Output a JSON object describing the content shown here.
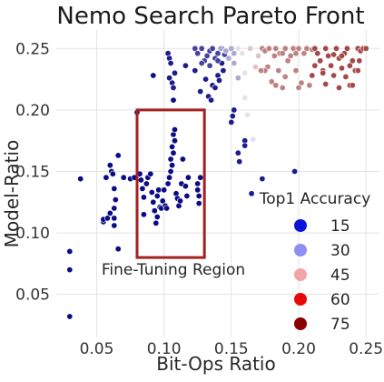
{
  "chart_data": {
    "type": "scatter",
    "title": "Nemo Search Pareto Front",
    "xlabel": "Bit-Ops Ratio",
    "ylabel": "Model-Ratio",
    "xlim": [
      0.02,
      0.26
    ],
    "ylim": [
      0.015,
      0.265
    ],
    "xticks": [
      0.05,
      0.1,
      0.15,
      0.2,
      0.25
    ],
    "xtick_labels": [
      "0.05",
      "0.10",
      "0.15",
      "0.20",
      "0.25"
    ],
    "yticks": [
      0.05,
      0.1,
      0.15,
      0.2,
      0.25
    ],
    "ytick_labels": [
      "0.05",
      "0.10",
      "0.15",
      "0.20",
      "0.25"
    ],
    "grid": true,
    "color_scale": {
      "min": 0,
      "max": 85,
      "low": "#000080",
      "mid": "#f5f0f0",
      "high": "#800000"
    },
    "legend": {
      "title": "Top1 Accuracy",
      "placement": "lower-right",
      "entries": [
        {
          "label": "15",
          "value": 15,
          "color": "#0b14d9"
        },
        {
          "label": "30",
          "value": 30,
          "color": "#8f8ff2"
        },
        {
          "label": "45",
          "value": 45,
          "color": "#f3a5a5"
        },
        {
          "label": "60",
          "value": 60,
          "color": "#e60a0a"
        },
        {
          "label": "75",
          "value": 75,
          "color": "#8b0000"
        }
      ]
    },
    "annotation": {
      "text": "Fine-Tuning Region",
      "rect_x": [
        0.08,
        0.13
      ],
      "rect_y": [
        0.08,
        0.2
      ],
      "edge_color": "#a52020"
    },
    "points": [
      [
        0.03,
        0.032,
        2
      ],
      [
        0.03,
        0.07,
        2
      ],
      [
        0.03,
        0.085,
        2
      ],
      [
        0.038,
        0.144,
        2
      ],
      [
        0.055,
        0.109,
        2
      ],
      [
        0.055,
        0.111,
        2
      ],
      [
        0.058,
        0.112,
        2
      ],
      [
        0.057,
        0.145,
        2
      ],
      [
        0.06,
        0.155,
        2
      ],
      [
        0.061,
        0.15,
        2
      ],
      [
        0.062,
        0.148,
        2
      ],
      [
        0.06,
        0.116,
        2
      ],
      [
        0.063,
        0.112,
        2
      ],
      [
        0.063,
        0.106,
        2
      ],
      [
        0.063,
        0.12,
        2
      ],
      [
        0.064,
        0.127,
        2
      ],
      [
        0.063,
        0.136,
        2
      ],
      [
        0.066,
        0.087,
        2
      ],
      [
        0.066,
        0.163,
        2
      ],
      [
        0.07,
        0.145,
        2
      ],
      [
        0.075,
        0.144,
        2
      ],
      [
        0.078,
        0.145,
        2
      ],
      [
        0.082,
        0.148,
        2
      ],
      [
        0.083,
        0.143,
        2
      ],
      [
        0.084,
        0.136,
        2
      ],
      [
        0.085,
        0.129,
        2
      ],
      [
        0.087,
        0.14,
        2
      ],
      [
        0.088,
        0.145,
        2
      ],
      [
        0.09,
        0.148,
        2
      ],
      [
        0.091,
        0.133,
        2
      ],
      [
        0.092,
        0.125,
        2
      ],
      [
        0.093,
        0.118,
        2
      ],
      [
        0.094,
        0.108,
        2
      ],
      [
        0.095,
        0.13,
        2
      ],
      [
        0.096,
        0.135,
        2
      ],
      [
        0.097,
        0.121,
        2
      ],
      [
        0.098,
        0.12,
        2
      ],
      [
        0.099,
        0.126,
        2
      ],
      [
        0.1,
        0.135,
        2
      ],
      [
        0.101,
        0.122,
        2
      ],
      [
        0.102,
        0.12,
        2
      ],
      [
        0.103,
        0.14,
        2
      ],
      [
        0.104,
        0.145,
        2
      ],
      [
        0.105,
        0.15,
        2
      ],
      [
        0.106,
        0.155,
        2
      ],
      [
        0.105,
        0.16,
        2
      ],
      [
        0.107,
        0.165,
        2
      ],
      [
        0.106,
        0.17,
        2
      ],
      [
        0.108,
        0.175,
        2
      ],
      [
        0.107,
        0.18,
        2
      ],
      [
        0.108,
        0.184,
        2
      ],
      [
        0.109,
        0.132,
        2
      ],
      [
        0.11,
        0.128,
        2
      ],
      [
        0.111,
        0.122,
        2
      ],
      [
        0.112,
        0.126,
        2
      ],
      [
        0.113,
        0.14,
        2
      ],
      [
        0.114,
        0.16,
        2
      ],
      [
        0.116,
        0.138,
        2
      ],
      [
        0.117,
        0.13,
        2
      ],
      [
        0.118,
        0.145,
        2
      ],
      [
        0.125,
        0.135,
        2
      ],
      [
        0.125,
        0.14,
        2
      ],
      [
        0.126,
        0.13,
        2
      ],
      [
        0.127,
        0.145,
        2
      ],
      [
        0.126,
        0.124,
        2
      ],
      [
        0.092,
        0.228,
        2
      ],
      [
        0.08,
        0.198,
        2
      ],
      [
        0.107,
        0.208,
        2
      ],
      [
        0.095,
        0.113,
        2
      ],
      [
        0.085,
        0.115,
        2
      ],
      [
        0.103,
        0.246,
        5
      ],
      [
        0.104,
        0.242,
        5
      ],
      [
        0.105,
        0.238,
        5
      ],
      [
        0.104,
        0.226,
        5
      ],
      [
        0.106,
        0.222,
        5
      ],
      [
        0.107,
        0.218,
        5
      ],
      [
        0.108,
        0.23,
        5
      ],
      [
        0.116,
        0.236,
        5
      ],
      [
        0.123,
        0.232,
        5
      ],
      [
        0.127,
        0.215,
        5
      ],
      [
        0.131,
        0.225,
        5
      ],
      [
        0.133,
        0.211,
        5
      ],
      [
        0.135,
        0.208,
        5
      ],
      [
        0.136,
        0.22,
        5
      ],
      [
        0.138,
        0.218,
        5
      ],
      [
        0.14,
        0.228,
        5
      ],
      [
        0.141,
        0.224,
        5
      ],
      [
        0.143,
        0.238,
        5
      ],
      [
        0.144,
        0.232,
        5
      ],
      [
        0.15,
        0.19,
        5
      ],
      [
        0.151,
        0.195,
        5
      ],
      [
        0.152,
        0.2,
        5
      ],
      [
        0.155,
        0.165,
        5
      ],
      [
        0.156,
        0.158,
        5
      ],
      [
        0.16,
        0.175,
        5
      ],
      [
        0.165,
        0.132,
        5
      ],
      [
        0.173,
        0.144,
        5
      ],
      [
        0.197,
        0.15,
        5
      ],
      [
        0.16,
        0.171,
        5
      ],
      [
        0.123,
        0.25,
        12
      ],
      [
        0.125,
        0.246,
        12
      ],
      [
        0.128,
        0.25,
        12
      ],
      [
        0.13,
        0.24,
        12
      ],
      [
        0.132,
        0.244,
        12
      ],
      [
        0.134,
        0.248,
        12
      ],
      [
        0.136,
        0.25,
        12
      ],
      [
        0.138,
        0.242,
        12
      ],
      [
        0.14,
        0.246,
        12
      ],
      [
        0.143,
        0.25,
        12
      ],
      [
        0.128,
        0.238,
        12
      ],
      [
        0.134,
        0.236,
        12
      ],
      [
        0.14,
        0.24,
        12
      ],
      [
        0.145,
        0.245,
        12
      ],
      [
        0.142,
        0.25,
        30
      ],
      [
        0.146,
        0.248,
        30
      ],
      [
        0.15,
        0.25,
        30
      ],
      [
        0.152,
        0.246,
        30
      ],
      [
        0.148,
        0.242,
        30
      ],
      [
        0.152,
        0.238,
        30
      ],
      [
        0.155,
        0.226,
        30
      ],
      [
        0.155,
        0.25,
        40
      ],
      [
        0.158,
        0.246,
        40
      ],
      [
        0.16,
        0.21,
        40
      ],
      [
        0.162,
        0.196,
        40
      ],
      [
        0.166,
        0.176,
        40
      ],
      [
        0.16,
        0.23,
        40
      ],
      [
        0.164,
        0.25,
        50
      ],
      [
        0.17,
        0.244,
        50
      ],
      [
        0.168,
        0.235,
        50
      ],
      [
        0.173,
        0.25,
        62
      ],
      [
        0.175,
        0.248,
        62
      ],
      [
        0.177,
        0.235,
        62
      ],
      [
        0.178,
        0.25,
        62
      ],
      [
        0.18,
        0.223,
        62
      ],
      [
        0.183,
        0.25,
        62
      ],
      [
        0.185,
        0.232,
        62
      ],
      [
        0.186,
        0.246,
        62
      ],
      [
        0.188,
        0.218,
        62
      ],
      [
        0.19,
        0.25,
        62
      ],
      [
        0.192,
        0.24,
        62
      ],
      [
        0.194,
        0.244,
        62
      ],
      [
        0.196,
        0.25,
        62
      ],
      [
        0.198,
        0.232,
        62
      ],
      [
        0.2,
        0.25,
        62
      ],
      [
        0.202,
        0.222,
        62
      ],
      [
        0.204,
        0.246,
        62
      ],
      [
        0.206,
        0.25,
        62
      ],
      [
        0.208,
        0.22,
        62
      ],
      [
        0.21,
        0.249,
        62
      ],
      [
        0.175,
        0.232,
        62
      ],
      [
        0.183,
        0.22,
        62
      ],
      [
        0.19,
        0.227,
        62
      ],
      [
        0.172,
        0.232,
        62
      ],
      [
        0.188,
        0.246,
        62
      ],
      [
        0.182,
        0.244,
        62
      ],
      [
        0.198,
        0.246,
        62
      ],
      [
        0.2,
        0.218,
        62
      ],
      [
        0.212,
        0.25,
        72
      ],
      [
        0.214,
        0.246,
        72
      ],
      [
        0.216,
        0.24,
        72
      ],
      [
        0.218,
        0.232,
        72
      ],
      [
        0.22,
        0.25,
        72
      ],
      [
        0.222,
        0.244,
        72
      ],
      [
        0.224,
        0.236,
        72
      ],
      [
        0.226,
        0.228,
        72
      ],
      [
        0.228,
        0.25,
        72
      ],
      [
        0.23,
        0.242,
        72
      ],
      [
        0.232,
        0.234,
        72
      ],
      [
        0.234,
        0.246,
        72
      ],
      [
        0.236,
        0.25,
        72
      ],
      [
        0.238,
        0.22,
        72
      ],
      [
        0.24,
        0.24,
        72
      ],
      [
        0.242,
        0.232,
        72
      ],
      [
        0.244,
        0.25,
        72
      ],
      [
        0.246,
        0.248,
        72
      ],
      [
        0.248,
        0.25,
        72
      ],
      [
        0.25,
        0.25,
        72
      ],
      [
        0.22,
        0.221,
        72
      ],
      [
        0.235,
        0.227,
        72
      ],
      [
        0.244,
        0.232,
        72
      ],
      [
        0.24,
        0.22,
        72
      ],
      [
        0.23,
        0.218,
        72
      ],
      [
        0.245,
        0.24,
        72
      ],
      [
        0.232,
        0.244,
        72
      ],
      [
        0.238,
        0.236,
        72
      ],
      [
        0.218,
        0.23,
        72
      ],
      [
        0.21,
        0.228,
        72
      ],
      [
        0.212,
        0.236,
        72
      ],
      [
        0.226,
        0.245,
        72
      ]
    ]
  }
}
